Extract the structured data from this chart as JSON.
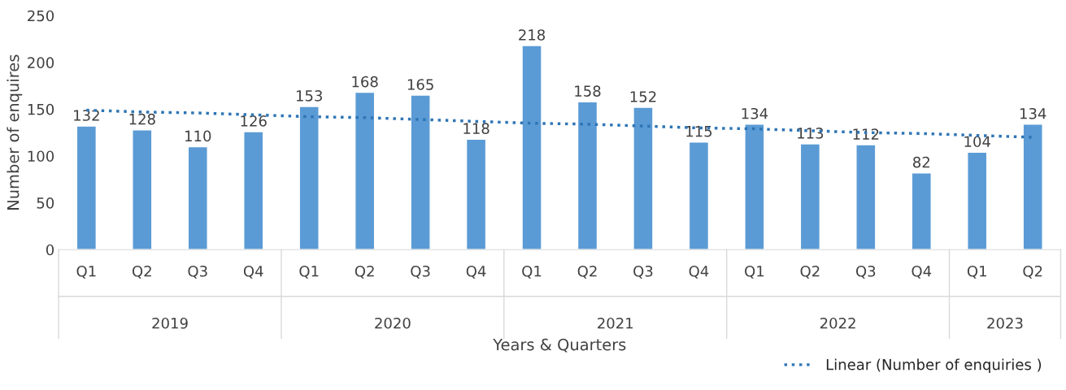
{
  "chart_data": {
    "type": "bar",
    "xlabel": "Years & Quarters",
    "ylabel": "Number of enquires",
    "categories": [
      "Q1",
      "Q2",
      "Q3",
      "Q4",
      "Q1",
      "Q2",
      "Q3",
      "Q4",
      "Q1",
      "Q2",
      "Q3",
      "Q4",
      "Q1",
      "Q2",
      "Q3",
      "Q4",
      "Q1",
      "Q2"
    ],
    "annotations": [
      "2019",
      "2020",
      "2021",
      "2022",
      "2023"
    ],
    "series": [
      {
        "color": "#5b9bd5",
        "values": [
          132,
          128,
          110,
          126,
          153,
          168,
          165,
          118,
          218,
          158,
          152,
          115,
          134,
          113,
          112,
          82,
          104,
          134
        ],
        "value_labels": [
          "132",
          "128",
          "110",
          "126",
          "153",
          "168",
          "165",
          "118",
          "218",
          "158",
          "152",
          "115",
          "134",
          "113",
          "112",
          "82",
          "104",
          "134"
        ]
      },
      {
        "type": "line",
        "name": "Linear (Number of enquiries )",
        "color": "#2e75b6",
        "line_style": "dotted",
        "values": [
          149,
          147,
          146,
          144,
          142,
          141,
          139,
          137,
          135,
          134,
          132,
          130,
          129,
          127,
          125,
          124,
          122,
          120
        ]
      }
    ],
    "ylim": [
      0,
      250
    ],
    "yticks": [
      0,
      50,
      100,
      150,
      200,
      250
    ],
    "grid": false,
    "legend": "bottom right"
  }
}
